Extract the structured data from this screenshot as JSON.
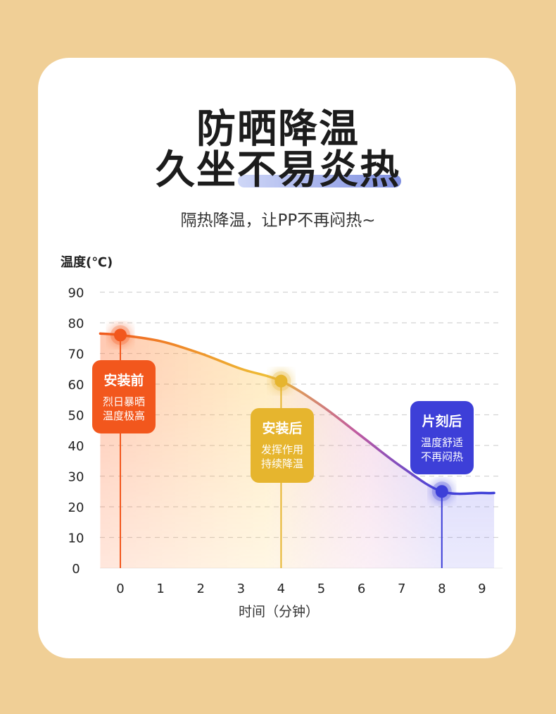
{
  "header": {
    "title_line1": "防晒降温",
    "title_line2": "久坐不易炎热",
    "subtitle": "隔热降温，让PP不再闷热~"
  },
  "chart_data": {
    "type": "line",
    "ylabel": "温度(℃)",
    "xlabel": "时间（分钟）",
    "x_ticks": [
      "0",
      "1",
      "2",
      "3",
      "4",
      "5",
      "6",
      "7",
      "8",
      "9"
    ],
    "y_ticks": [
      "0",
      "10",
      "20",
      "30",
      "40",
      "50",
      "60",
      "70",
      "80",
      "90"
    ],
    "xlim": [
      0,
      9.3
    ],
    "ylim": [
      0,
      90
    ],
    "grid": true,
    "series": [
      {
        "x": [
          -0.5,
          0,
          1,
          2,
          3,
          4,
          5,
          6,
          7,
          8,
          9,
          9.3
        ],
        "y": [
          76.5,
          76,
          74,
          70,
          65,
          61,
          53,
          43,
          33,
          25,
          24.5,
          24.5
        ]
      }
    ],
    "markers": [
      {
        "x": 0,
        "y": 76,
        "color": "#f2571d",
        "label": "安装前",
        "line1": "烈日暴晒",
        "line2": "温度极高"
      },
      {
        "x": 4,
        "y": 61,
        "color": "#e6b52e",
        "label": "安装后",
        "line1": "发挥作用",
        "line2": "持续降温"
      },
      {
        "x": 8,
        "y": 25,
        "color": "#3d3fd8",
        "label": "片刻后",
        "line1": "温度舒适",
        "line2": "不再闷热"
      }
    ]
  }
}
